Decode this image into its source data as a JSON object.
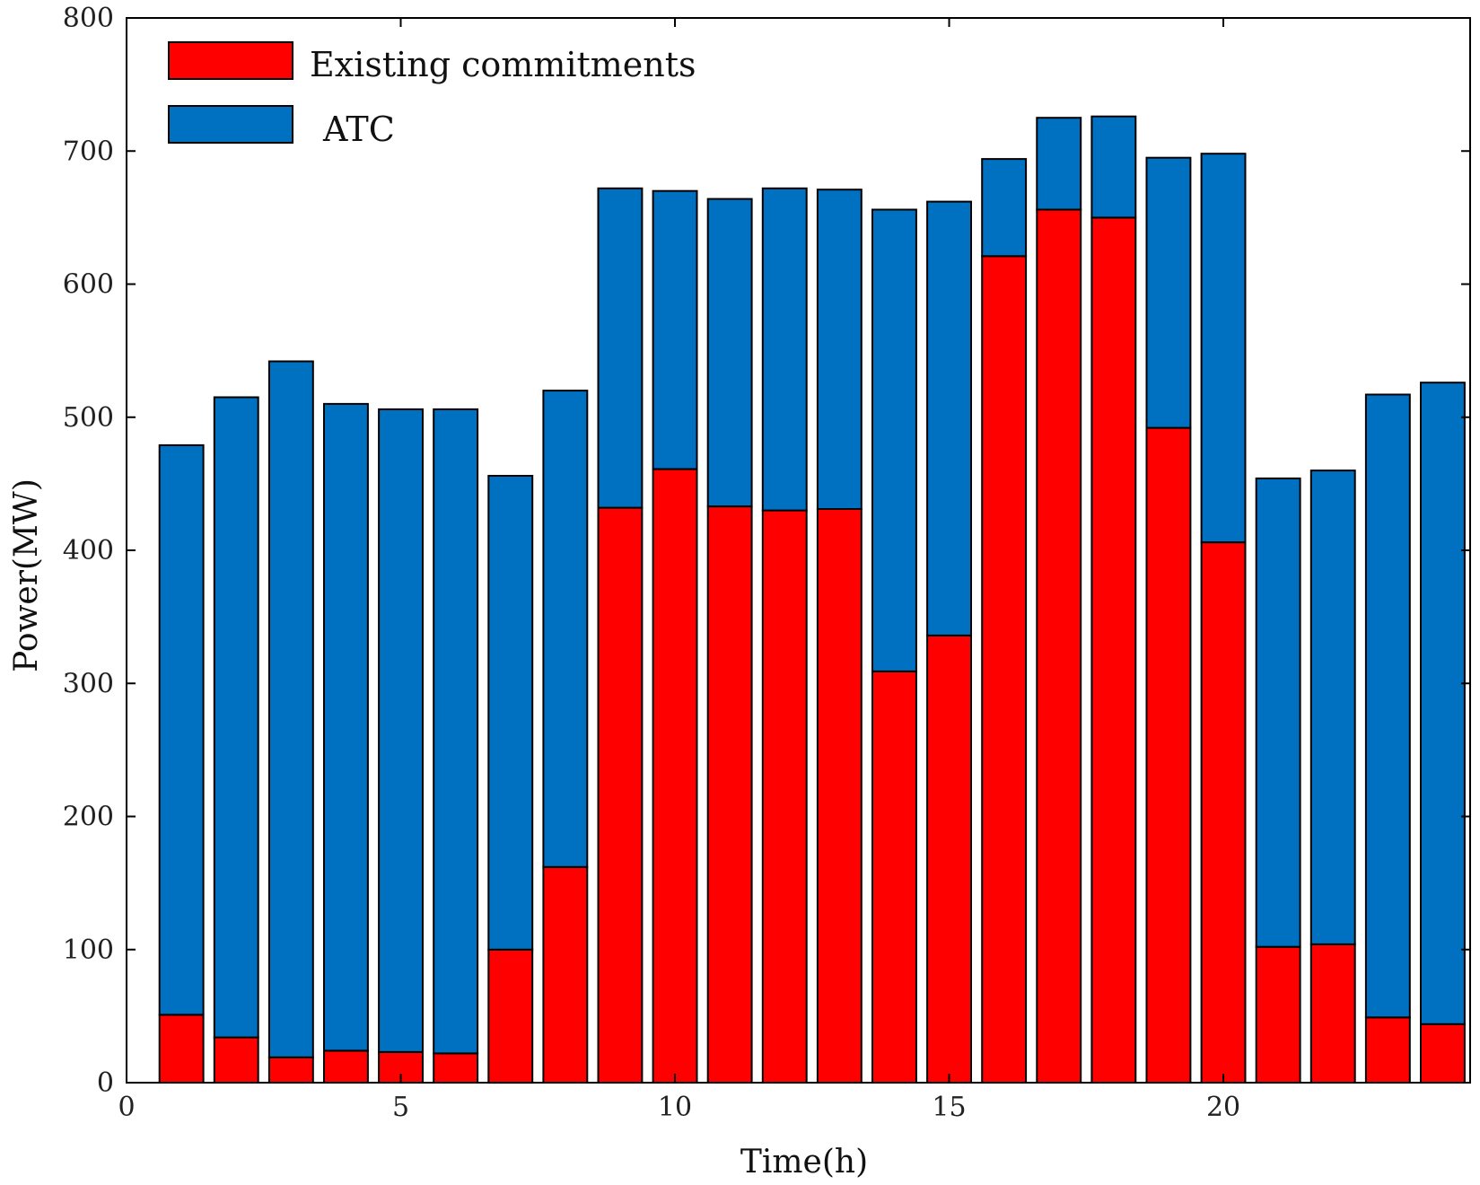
{
  "chart_data": {
    "type": "bar",
    "stacked": true,
    "title": "",
    "xlabel": "Time(h)",
    "ylabel": "Power(MW)",
    "xlim": [
      0,
      24.5
    ],
    "ylim": [
      0,
      800
    ],
    "xticks": [
      0,
      5,
      10,
      15,
      20
    ],
    "yticks": [
      0,
      100,
      200,
      300,
      400,
      500,
      600,
      700,
      800
    ],
    "legend_position": "top-left",
    "grid": false,
    "categories": [
      1,
      2,
      3,
      4,
      5,
      6,
      7,
      8,
      9,
      10,
      11,
      12,
      13,
      14,
      15,
      16,
      17,
      18,
      19,
      20,
      21,
      22,
      23,
      24
    ],
    "series": [
      {
        "name": "Existing commitments",
        "color": "#ff0000",
        "values": [
          51,
          34,
          19,
          24,
          23,
          22,
          100,
          162,
          432,
          461,
          433,
          430,
          431,
          309,
          336,
          621,
          656,
          650,
          492,
          406,
          102,
          104,
          49,
          44
        ]
      },
      {
        "name": "ATC",
        "color": "#0070c0",
        "values": [
          428,
          481,
          523,
          486,
          483,
          484,
          356,
          358,
          240,
          209,
          231,
          242,
          240,
          347,
          326,
          73,
          69,
          76,
          203,
          292,
          352,
          356,
          468,
          482
        ]
      }
    ]
  }
}
